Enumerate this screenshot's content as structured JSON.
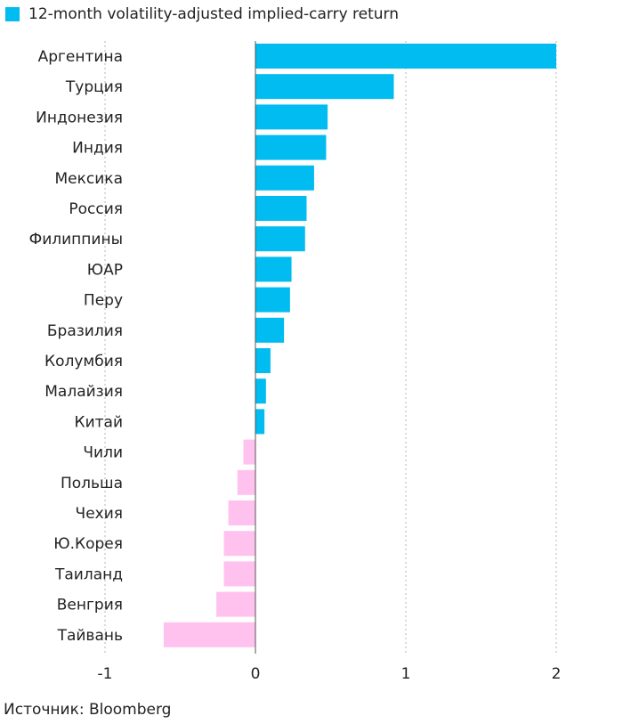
{
  "legend": {
    "label": "12-month volatility-adjusted implied-carry return"
  },
  "source": "Источник: Bloomberg",
  "colors": {
    "positive": "#00bcf0",
    "negative": "#ffc2ee",
    "grid": "#b5b5b5",
    "zero_line": "#555555"
  },
  "chart_data": {
    "type": "bar",
    "orientation": "horizontal",
    "title": "",
    "xlabel": "",
    "ylabel": "",
    "xlim": [
      -1,
      2
    ],
    "xticks": [
      -1,
      0,
      1,
      2
    ],
    "xtick_labels": [
      "-1",
      "0",
      "1",
      "2"
    ],
    "grid": true,
    "legend_position": "top-left",
    "series": [
      {
        "name": "12-month volatility-adjusted implied-carry return"
      }
    ],
    "categories": [
      "Аргентина",
      "Турция",
      "Индонезия",
      "Индия",
      "Мексика",
      "Россия",
      "Филиппины",
      "ЮАР",
      "Перу",
      "Бразилия",
      "Колумбия",
      "Малайзия",
      "Китай",
      "Чили",
      "Польша",
      "Чехия",
      "Ю.Корея",
      "Таиланд",
      "Венгрия",
      "Тайвань"
    ],
    "values": [
      2.0,
      0.92,
      0.48,
      0.47,
      0.39,
      0.34,
      0.33,
      0.24,
      0.23,
      0.19,
      0.1,
      0.07,
      0.06,
      -0.08,
      -0.12,
      -0.18,
      -0.21,
      -0.21,
      -0.26,
      -0.61
    ]
  }
}
